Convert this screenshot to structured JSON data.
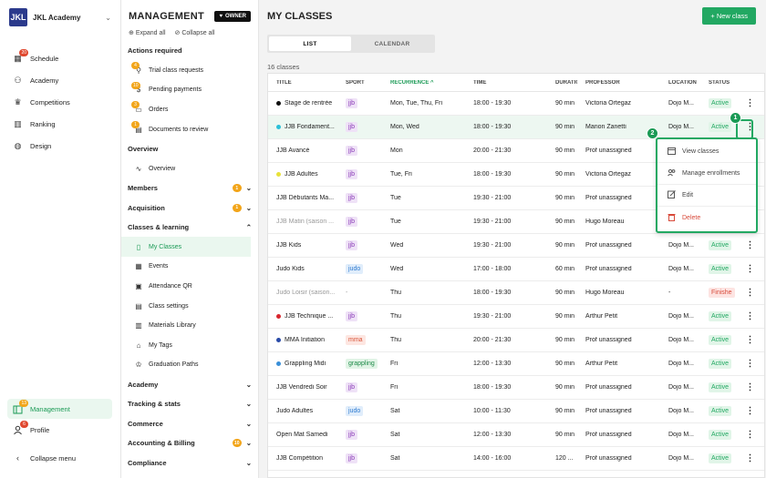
{
  "brand": {
    "logo_text": "JKL",
    "name": "JKL Academy"
  },
  "nav": {
    "items": [
      {
        "label": "Schedule",
        "icon": "calendar-icon",
        "badge": "20"
      },
      {
        "label": "Academy",
        "icon": "users-icon",
        "badge": ""
      },
      {
        "label": "Competitions",
        "icon": "trophy-icon",
        "badge": ""
      },
      {
        "label": "Ranking",
        "icon": "ranking-icon",
        "badge": ""
      },
      {
        "label": "Design",
        "icon": "palette-icon",
        "badge": ""
      }
    ],
    "management": {
      "label": "Management",
      "badge": "13"
    },
    "profile": {
      "label": "Profile",
      "badge": "6"
    },
    "collapse": "Collapse menu"
  },
  "panel": {
    "title": "MANAGEMENT",
    "owner": "OWNER",
    "expand_all": "Expand all",
    "collapse_all": "Collapse all",
    "actions_required": "Actions required",
    "actions": [
      {
        "label": "Trial class requests",
        "badge": "4"
      },
      {
        "label": "Pending payments",
        "badge": "10"
      },
      {
        "label": "Orders",
        "badge": "3"
      },
      {
        "label": "Documents to review",
        "badge": "1"
      }
    ],
    "overview_section": "Overview",
    "overview_item": "Overview",
    "members": {
      "label": "Members",
      "badge": "1"
    },
    "acquisition": {
      "label": "Acquisition",
      "badge": "1"
    },
    "classes_learning": "Classes & learning",
    "class_items": [
      "My Classes",
      "Events",
      "Attendance QR",
      "Class settings",
      "Materials Library",
      "My Tags",
      "Graduation Paths"
    ],
    "academy": "Academy",
    "tracking": "Tracking & stats",
    "commerce": "Commerce",
    "accounting": {
      "label": "Accounting & Billing",
      "badge": "10"
    },
    "compliance": "Compliance"
  },
  "main": {
    "title": "MY CLASSES",
    "new_button": "+ New class",
    "tabs": [
      "LIST",
      "CALENDAR"
    ],
    "count": "16 classes",
    "columns": [
      "TITLE",
      "SPORT",
      "RECURRENCE ^",
      "TIME",
      "DURATIO",
      "PROFESSOR",
      "LOCATION",
      "STATUS"
    ],
    "rows": [
      {
        "title": "Stage de rentrée",
        "dot": "#111111",
        "sport": "jjb",
        "rec": "Mon, Tue, Thu, Fri",
        "time": "18:00 - 19:30",
        "dur": "90 min",
        "prof": "Victoria Ortegaz",
        "loc": "Dojo M...",
        "status": "Active",
        "muted": false
      },
      {
        "title": "JJB Fondament...",
        "dot": "#2bc0d8",
        "sport": "jjb",
        "rec": "Mon, Wed",
        "time": "18:00 - 19:30",
        "dur": "90 min",
        "prof": "Manon Zanetti",
        "loc": "Dojo M...",
        "status": "Active",
        "muted": false
      },
      {
        "title": "JJB Avancé",
        "dot": "",
        "sport": "jjb",
        "rec": "Mon",
        "time": "20:00 - 21:30",
        "dur": "90 min",
        "prof": "Prof unassigned",
        "loc": "",
        "status": "",
        "muted": false
      },
      {
        "title": "JJB Adultes",
        "dot": "#e8e23a",
        "sport": "jjb",
        "rec": "Tue, Fri",
        "time": "18:00 - 19:30",
        "dur": "90 min",
        "prof": "Victoria Ortegaz",
        "loc": "",
        "status": "",
        "muted": false
      },
      {
        "title": "JJB Débutants Ma...",
        "dot": "",
        "sport": "jjb",
        "rec": "Tue",
        "time": "19:30 - 21:00",
        "dur": "90 min",
        "prof": "Prof unassigned",
        "loc": "",
        "status": "",
        "muted": false
      },
      {
        "title": "JJB Matin (saison ...",
        "dot": "",
        "sport": "jjb",
        "rec": "Tue",
        "time": "19:30 - 21:00",
        "dur": "90 min",
        "prof": "Hugo Moreau",
        "loc": "",
        "status": "",
        "muted": true
      },
      {
        "title": "JJB Kids",
        "dot": "",
        "sport": "jjb",
        "rec": "Wed",
        "time": "19:30 - 21:00",
        "dur": "90 min",
        "prof": "Prof unassigned",
        "loc": "Dojo M...",
        "status": "Active",
        "muted": false
      },
      {
        "title": "Judo Kids",
        "dot": "",
        "sport": "judo",
        "rec": "Wed",
        "time": "17:00 - 18:00",
        "dur": "60 min",
        "prof": "Prof unassigned",
        "loc": "Dojo M...",
        "status": "Active",
        "muted": false
      },
      {
        "title": "Judo Loisir (saison...",
        "dot": "",
        "sport": "-",
        "rec": "Thu",
        "time": "18:00 - 19:30",
        "dur": "90 min",
        "prof": "Hugo Moreau",
        "loc": "-",
        "status": "Finishe",
        "muted": true
      },
      {
        "title": "JJB Technique ...",
        "dot": "#d8262e",
        "sport": "jjb",
        "rec": "Thu",
        "time": "19:30 - 21:00",
        "dur": "90 min",
        "prof": "Arthur Petit",
        "loc": "Dojo M...",
        "status": "Active",
        "muted": false
      },
      {
        "title": "MMA Initiation",
        "dot": "#2a4ba8",
        "sport": "mma",
        "rec": "Thu",
        "time": "20:00 - 21:30",
        "dur": "90 min",
        "prof": "Prof unassigned",
        "loc": "Dojo M...",
        "status": "Active",
        "muted": false
      },
      {
        "title": "Grappling Midi",
        "dot": "#3a8fd8",
        "sport": "grappling",
        "rec": "Fri",
        "time": "12:00 - 13:30",
        "dur": "90 min",
        "prof": "Arthur Petit",
        "loc": "Dojo M...",
        "status": "Active",
        "muted": false
      },
      {
        "title": "JJB Vendredi Soir",
        "dot": "",
        "sport": "jjb",
        "rec": "Fri",
        "time": "18:00 - 19:30",
        "dur": "90 min",
        "prof": "Prof unassigned",
        "loc": "Dojo M...",
        "status": "Active",
        "muted": false
      },
      {
        "title": "Judo Adultes",
        "dot": "",
        "sport": "judo",
        "rec": "Sat",
        "time": "10:00 - 11:30",
        "dur": "90 min",
        "prof": "Prof unassigned",
        "loc": "Dojo M...",
        "status": "Active",
        "muted": false
      },
      {
        "title": "Open Mat Samedi",
        "dot": "",
        "sport": "jjb",
        "rec": "Sat",
        "time": "12:00 - 13:30",
        "dur": "90 min",
        "prof": "Prof unassigned",
        "loc": "Dojo M...",
        "status": "Active",
        "muted": false
      },
      {
        "title": "JJB Compétition",
        "dot": "",
        "sport": "jjb",
        "rec": "Sat",
        "time": "14:00 - 16:00",
        "dur": "120 ...",
        "prof": "Prof unassigned",
        "loc": "Dojo M...",
        "status": "Active",
        "muted": false
      }
    ],
    "menu": [
      "View classes",
      "Manage enrollments",
      "Edit",
      "Delete"
    ],
    "callouts": [
      "1",
      "2"
    ]
  },
  "sport_colors": {
    "jjb": {
      "bg": "#efe2f7",
      "fg": "#8a3bb8"
    },
    "judo": {
      "bg": "#e0edfb",
      "fg": "#2e7bd0"
    },
    "mma": {
      "bg": "#fde6e1",
      "fg": "#d8553a"
    },
    "grappling": {
      "bg": "#e1f4e6",
      "fg": "#1d8a48"
    }
  },
  "accent": "#22a862"
}
